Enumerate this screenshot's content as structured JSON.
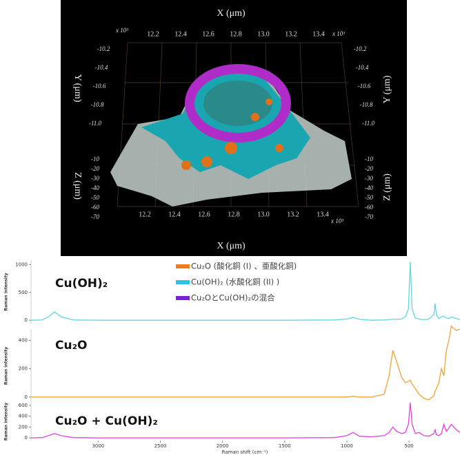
{
  "render": {
    "x_label": "X (μm)",
    "y_label": "Y (μm)",
    "z_label": "Z (μm)",
    "exponent": "x 10³",
    "x_ticks": [
      "12.2",
      "12.4",
      "12.6",
      "12.8",
      "13.0",
      "13.2",
      "13.4"
    ],
    "y_ticks": [
      "-10.2",
      "-10.4",
      "-10.6",
      "-10.8",
      "-11.0"
    ],
    "z_ticks": [
      "-10",
      "-20",
      "-30",
      "-40",
      "-50",
      "-60",
      "-70"
    ]
  },
  "legend": [
    {
      "name": "Cu₂O (酸化銅 (I) 、亜酸化銅)",
      "color": "#f07d1a"
    },
    {
      "name": "Cu(OH)₂ (水酸化銅 (II) )",
      "color": "#29c4e8"
    },
    {
      "name": "Cu₂OとCu(OH)₂の混合",
      "color": "#7a1fd6"
    }
  ],
  "chart_data": [
    {
      "type": "line",
      "label": "Cu(OH)₂",
      "ylabel": "Raman intensity",
      "x": [
        3540,
        3450,
        3400,
        3350,
        3300,
        3200,
        3000,
        2500,
        2000,
        1500,
        1100,
        1000,
        950,
        900,
        800,
        700,
        660,
        630,
        600,
        560,
        530,
        505,
        490,
        475,
        450,
        420,
        380,
        340,
        300,
        290,
        280,
        260,
        240,
        220,
        200,
        180,
        160,
        120,
        90
      ],
      "series": [
        {
          "color": "#5fd8dc",
          "values": [
            0,
            5,
            60,
            150,
            60,
            5,
            0,
            0,
            0,
            0,
            5,
            20,
            50,
            15,
            0,
            5,
            10,
            20,
            15,
            20,
            60,
            200,
            1050,
            200,
            40,
            20,
            10,
            20,
            100,
            300,
            100,
            30,
            60,
            70,
            40,
            30,
            60,
            30,
            10
          ]
        }
      ],
      "xlim": [
        3540,
        90
      ],
      "ylim": [
        -60,
        1080
      ],
      "yticks": [
        0,
        500,
        1000
      ]
    },
    {
      "type": "line",
      "label": "Cu₂O",
      "ylabel": "Raman intensity",
      "x": [
        3540,
        3450,
        3400,
        3350,
        3300,
        3200,
        3000,
        2500,
        2000,
        1500,
        1100,
        1000,
        950,
        900,
        800,
        700,
        660,
        630,
        600,
        560,
        530,
        505,
        490,
        475,
        450,
        420,
        380,
        340,
        300,
        290,
        280,
        260,
        240,
        220,
        200,
        180,
        160,
        120,
        90
      ],
      "series": [
        {
          "color": "#f0a330",
          "values": [
            0,
            0,
            0,
            0,
            0,
            0,
            0,
            0,
            0,
            0,
            0,
            0,
            5,
            0,
            0,
            20,
            150,
            330,
            250,
            140,
            100,
            110,
            120,
            90,
            60,
            20,
            -10,
            -20,
            10,
            40,
            60,
            100,
            200,
            150,
            330,
            400,
            500,
            470,
            480
          ]
        }
      ],
      "xlim": [
        3540,
        90
      ],
      "ylim": [
        -40,
        480
      ],
      "yticks": [
        0,
        200,
        400
      ]
    },
    {
      "type": "line",
      "label": "Cu₂O + Cu(OH)₂",
      "ylabel": "Raman intensity",
      "xlabel": "Raman shift (cm⁻¹)",
      "x": [
        3540,
        3450,
        3400,
        3350,
        3300,
        3200,
        3000,
        2500,
        2000,
        1500,
        1100,
        1000,
        950,
        900,
        800,
        700,
        660,
        630,
        600,
        560,
        530,
        505,
        490,
        475,
        450,
        420,
        380,
        340,
        300,
        290,
        280,
        260,
        240,
        220,
        200,
        180,
        160,
        120,
        90
      ],
      "series": [
        {
          "color": "#e23fe0",
          "values": [
            0,
            5,
            40,
            80,
            40,
            5,
            0,
            0,
            0,
            0,
            5,
            40,
            100,
            30,
            20,
            40,
            100,
            200,
            120,
            80,
            100,
            250,
            650,
            250,
            80,
            100,
            40,
            30,
            80,
            150,
            60,
            40,
            80,
            250,
            120,
            180,
            250,
            150,
            100
          ]
        }
      ],
      "xlim": [
        3540,
        90
      ],
      "ylim": [
        -50,
        650
      ],
      "yticks": [
        0,
        200,
        400,
        600
      ],
      "xticks": [
        3000,
        2500,
        2000,
        1500,
        1000,
        500
      ]
    }
  ]
}
